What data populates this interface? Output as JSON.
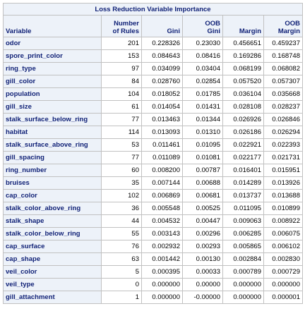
{
  "title": "Loss Reduction Variable Importance",
  "columns": {
    "variable": "Variable",
    "rules_line1": "Number",
    "rules_line2": "of Rules",
    "gini": "Gini",
    "oob_gini_line1": "OOB",
    "oob_gini_line2": "Gini",
    "margin": "Margin",
    "oob_margin_line1": "OOB",
    "oob_margin_line2": "Margin"
  },
  "rows": [
    {
      "variable": "odor",
      "rules": "201",
      "gini": "0.228326",
      "oob_gini": "0.23030",
      "margin": "0.456651",
      "oob_margin": "0.459237"
    },
    {
      "variable": "spore_print_color",
      "rules": "153",
      "gini": "0.084643",
      "oob_gini": "0.08416",
      "margin": "0.169286",
      "oob_margin": "0.168748"
    },
    {
      "variable": "ring_type",
      "rules": "97",
      "gini": "0.034099",
      "oob_gini": "0.03404",
      "margin": "0.068199",
      "oob_margin": "0.068082"
    },
    {
      "variable": "gill_color",
      "rules": "84",
      "gini": "0.028760",
      "oob_gini": "0.02854",
      "margin": "0.057520",
      "oob_margin": "0.057307"
    },
    {
      "variable": "population",
      "rules": "104",
      "gini": "0.018052",
      "oob_gini": "0.01785",
      "margin": "0.036104",
      "oob_margin": "0.035668"
    },
    {
      "variable": "gill_size",
      "rules": "61",
      "gini": "0.014054",
      "oob_gini": "0.01431",
      "margin": "0.028108",
      "oob_margin": "0.028237"
    },
    {
      "variable": "stalk_surface_below_ring",
      "rules": "77",
      "gini": "0.013463",
      "oob_gini": "0.01344",
      "margin": "0.026926",
      "oob_margin": "0.026846"
    },
    {
      "variable": "habitat",
      "rules": "114",
      "gini": "0.013093",
      "oob_gini": "0.01310",
      "margin": "0.026186",
      "oob_margin": "0.026294"
    },
    {
      "variable": "stalk_surface_above_ring",
      "rules": "53",
      "gini": "0.011461",
      "oob_gini": "0.01095",
      "margin": "0.022921",
      "oob_margin": "0.022393"
    },
    {
      "variable": "gill_spacing",
      "rules": "77",
      "gini": "0.011089",
      "oob_gini": "0.01081",
      "margin": "0.022177",
      "oob_margin": "0.021731"
    },
    {
      "variable": "ring_number",
      "rules": "60",
      "gini": "0.008200",
      "oob_gini": "0.00787",
      "margin": "0.016401",
      "oob_margin": "0.015951"
    },
    {
      "variable": "bruises",
      "rules": "35",
      "gini": "0.007144",
      "oob_gini": "0.00688",
      "margin": "0.014289",
      "oob_margin": "0.013926"
    },
    {
      "variable": "cap_color",
      "rules": "102",
      "gini": "0.006869",
      "oob_gini": "0.00681",
      "margin": "0.013737",
      "oob_margin": "0.013688"
    },
    {
      "variable": "stalk_color_above_ring",
      "rules": "36",
      "gini": "0.005548",
      "oob_gini": "0.00525",
      "margin": "0.011095",
      "oob_margin": "0.010899"
    },
    {
      "variable": "stalk_shape",
      "rules": "44",
      "gini": "0.004532",
      "oob_gini": "0.00447",
      "margin": "0.009063",
      "oob_margin": "0.008922"
    },
    {
      "variable": "stalk_color_below_ring",
      "rules": "55",
      "gini": "0.003143",
      "oob_gini": "0.00296",
      "margin": "0.006285",
      "oob_margin": "0.006075"
    },
    {
      "variable": "cap_surface",
      "rules": "76",
      "gini": "0.002932",
      "oob_gini": "0.00293",
      "margin": "0.005865",
      "oob_margin": "0.006102"
    },
    {
      "variable": "cap_shape",
      "rules": "63",
      "gini": "0.001442",
      "oob_gini": "0.00130",
      "margin": "0.002884",
      "oob_margin": "0.002830"
    },
    {
      "variable": "veil_color",
      "rules": "5",
      "gini": "0.000395",
      "oob_gini": "0.00033",
      "margin": "0.000789",
      "oob_margin": "0.000729"
    },
    {
      "variable": "veil_type",
      "rules": "0",
      "gini": "0.000000",
      "oob_gini": "0.00000",
      "margin": "0.000000",
      "oob_margin": "0.000000"
    },
    {
      "variable": "gill_attachment",
      "rules": "1",
      "gini": "0.000000",
      "oob_gini": "-0.00000",
      "margin": "0.000000",
      "oob_margin": "0.000001"
    }
  ],
  "colors": {
    "header_bg": "#edf2f9",
    "header_text": "#112277",
    "border": "#c1c1c1",
    "cell_text": "#000000"
  }
}
